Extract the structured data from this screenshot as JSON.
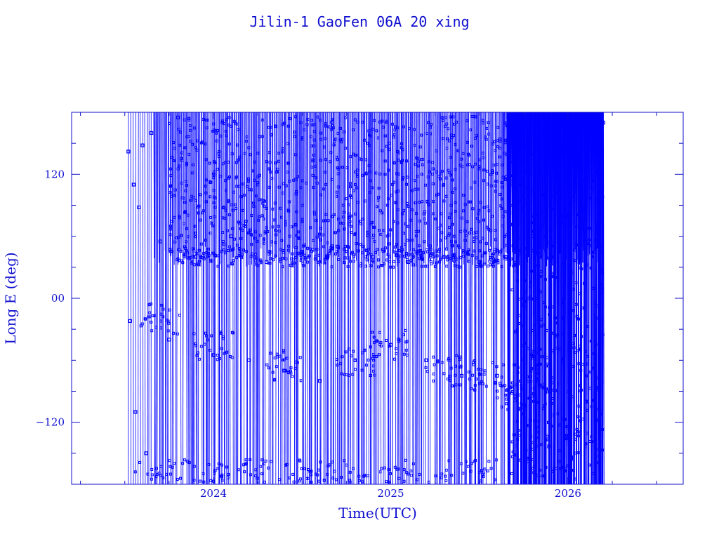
{
  "colors": {
    "axis": "#1010c8",
    "data": "#0000ff",
    "text": "#1010d0"
  },
  "chart_data": {
    "type": "line",
    "title": "Jilin-1 GaoFen 06A 20 xing",
    "xlabel": "Time(UTC)",
    "ylabel": "Long E (deg)",
    "xlim": [
      2023.2,
      2026.65
    ],
    "ylim": [
      -180,
      180
    ],
    "x_ticks": [
      {
        "value": 2024,
        "label": "2024"
      },
      {
        "value": 2025,
        "label": "2025"
      },
      {
        "value": 2026,
        "label": "2026"
      }
    ],
    "y_ticks": [
      {
        "value": 120,
        "label": "120"
      },
      {
        "value": 0,
        "label": "00"
      },
      {
        "value": -120,
        "label": "−120"
      }
    ],
    "grid": false,
    "markers": "square",
    "series": [
      {
        "description_key": "longitude",
        "time_range": [
          2023.52,
          2026.2
        ],
        "dense_band_upper": [
          30,
          180
        ],
        "lower_clusters": [
          {
            "x": 2023.7,
            "y": -20
          },
          {
            "x": 2024.0,
            "y": -45
          },
          {
            "x": 2024.4,
            "y": -65
          },
          {
            "x": 2024.8,
            "y": -60
          },
          {
            "x": 2025.0,
            "y": -45
          },
          {
            "x": 2025.3,
            "y": -70
          },
          {
            "x": 2025.55,
            "y": -75
          },
          {
            "x": 2025.7,
            "y": -95
          }
        ],
        "sample_points": [
          [
            2023.52,
            142
          ],
          [
            2023.53,
            -22
          ],
          [
            2023.55,
            110
          ],
          [
            2023.56,
            -110
          ],
          [
            2023.58,
            88
          ],
          [
            2023.6,
            148
          ],
          [
            2023.62,
            -150
          ],
          [
            2023.65,
            160
          ],
          [
            2023.7,
            55
          ],
          [
            2023.75,
            -40
          ],
          [
            2023.8,
            175
          ],
          [
            2023.9,
            40
          ],
          [
            2024.0,
            -55
          ],
          [
            2024.1,
            60
          ],
          [
            2024.2,
            -60
          ],
          [
            2024.3,
            35
          ],
          [
            2024.4,
            -70
          ],
          [
            2024.5,
            45
          ],
          [
            2024.6,
            -80
          ],
          [
            2024.7,
            50
          ],
          [
            2024.8,
            -60
          ],
          [
            2024.9,
            40
          ],
          [
            2025.0,
            -45
          ],
          [
            2025.1,
            35
          ],
          [
            2025.2,
            -60
          ],
          [
            2025.3,
            40
          ],
          [
            2025.4,
            -75
          ],
          [
            2025.5,
            35
          ],
          [
            2025.6,
            -75
          ],
          [
            2025.65,
            40
          ],
          [
            2025.7,
            -95
          ],
          [
            2025.8,
            60
          ],
          [
            2025.9,
            -90
          ],
          [
            2026.0,
            80
          ],
          [
            2026.1,
            -100
          ],
          [
            2026.2,
            170
          ]
        ]
      }
    ]
  }
}
